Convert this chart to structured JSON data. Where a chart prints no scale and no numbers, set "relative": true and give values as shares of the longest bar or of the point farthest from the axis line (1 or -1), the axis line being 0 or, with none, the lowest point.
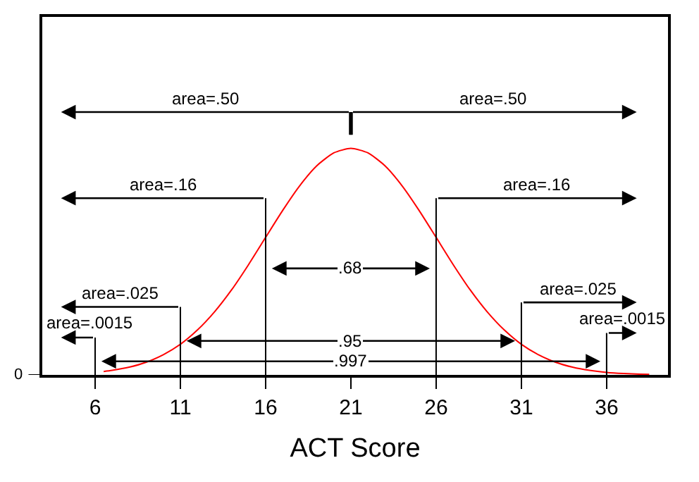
{
  "chart_data": {
    "type": "line",
    "xlabel": "ACT Score",
    "x": [
      6.5,
      7,
      8,
      9,
      10,
      11,
      12,
      13,
      14,
      15,
      16,
      17,
      18,
      19,
      20,
      21,
      22,
      23,
      24,
      25,
      26,
      27,
      28,
      29,
      30,
      31,
      32,
      33,
      34,
      35,
      36,
      37,
      38,
      38.5
    ],
    "values": [
      0.015,
      0.02,
      0.034,
      0.056,
      0.089,
      0.135,
      0.198,
      0.278,
      0.375,
      0.487,
      0.607,
      0.726,
      0.835,
      0.923,
      0.98,
      1,
      0.98,
      0.923,
      0.835,
      0.726,
      0.607,
      0.487,
      0.375,
      0.278,
      0.198,
      0.135,
      0.089,
      0.056,
      0.034,
      0.02,
      0.011,
      0.006,
      0.003,
      0.002
    ],
    "color": "#ff0000",
    "relative": true,
    "xlim": [
      2.9,
      39.6
    ],
    "xticks": [
      6,
      11,
      16,
      21,
      26,
      31,
      36
    ],
    "marker": "none",
    "line_style": "solid",
    "annotations": [
      "0",
      "area=.50",
      "area=.50",
      "area=.16",
      "area=.16",
      "area=.025",
      "area=.025",
      "area=.0015",
      "area=.0015",
      ".68",
      ".95",
      ".997"
    ]
  }
}
